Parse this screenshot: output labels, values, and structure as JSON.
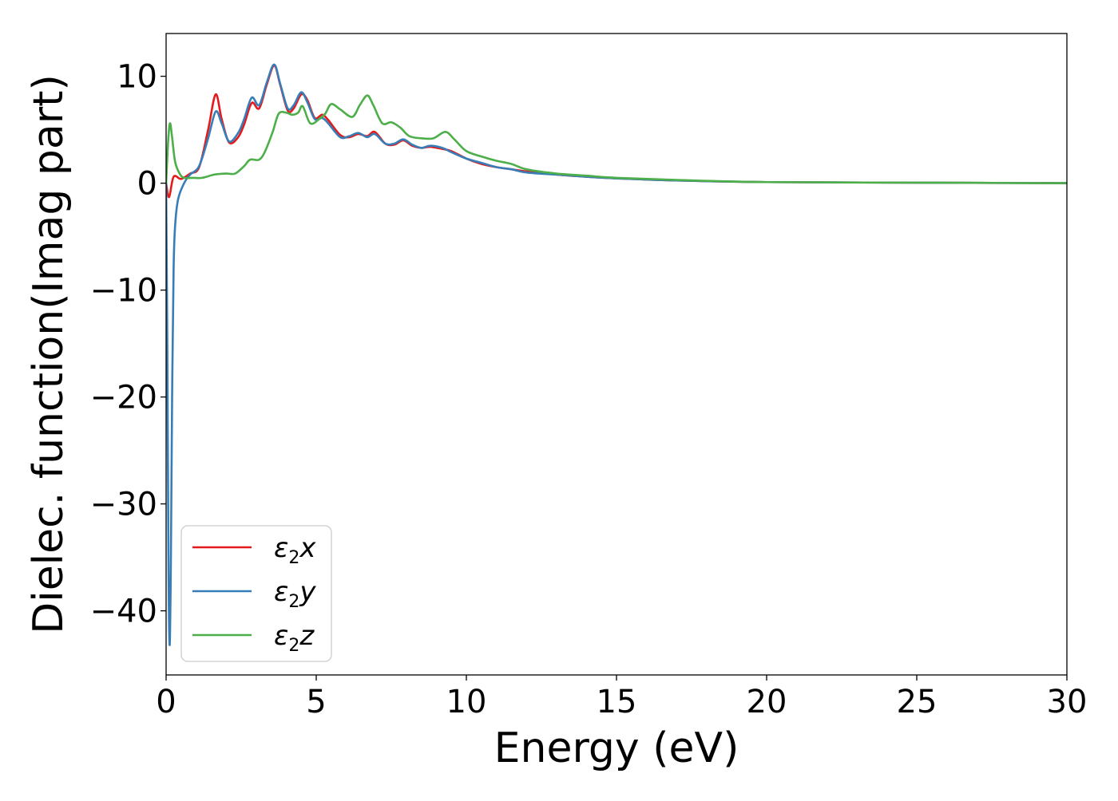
{
  "chart_data": {
    "type": "line",
    "title": "",
    "xlabel": "Energy (eV)",
    "ylabel": "Dielec. function(Imag part)",
    "xlim": [
      0,
      30
    ],
    "ylim": [
      -46,
      14
    ],
    "xticks": [
      0,
      5,
      10,
      15,
      20,
      25,
      30
    ],
    "xtick_labels": [
      "0",
      "5",
      "10",
      "15",
      "20",
      "25",
      "30"
    ],
    "yticks": [
      10,
      0,
      -10,
      -20,
      -30,
      -40
    ],
    "ytick_labels": [
      "10",
      "0",
      "−10",
      "−20",
      "−30",
      "−40"
    ],
    "grid": false,
    "legend_position": "lower-left",
    "series": [
      {
        "name": "ε₂x",
        "legend_main": "ε",
        "legend_sub": "2",
        "legend_tail": "x",
        "color": "#e41a1c",
        "points": [
          [
            0,
            0
          ],
          [
            0.1,
            -1.3
          ],
          [
            0.25,
            0.6
          ],
          [
            0.5,
            0.4
          ],
          [
            0.8,
            0.9
          ],
          [
            1.1,
            1.5
          ],
          [
            1.4,
            5.0
          ],
          [
            1.65,
            8.3
          ],
          [
            1.85,
            6.0
          ],
          [
            2.1,
            3.8
          ],
          [
            2.4,
            4.3
          ],
          [
            2.6,
            5.5
          ],
          [
            2.85,
            7.5
          ],
          [
            3.1,
            7.0
          ],
          [
            3.35,
            9.2
          ],
          [
            3.6,
            11.0
          ],
          [
            3.8,
            9.2
          ],
          [
            4.05,
            6.8
          ],
          [
            4.25,
            7.0
          ],
          [
            4.5,
            8.3
          ],
          [
            4.7,
            7.8
          ],
          [
            4.95,
            6.1
          ],
          [
            5.2,
            6.4
          ],
          [
            5.4,
            5.9
          ],
          [
            5.8,
            4.5
          ],
          [
            6.1,
            4.3
          ],
          [
            6.4,
            4.6
          ],
          [
            6.7,
            4.4
          ],
          [
            6.95,
            4.8
          ],
          [
            7.3,
            3.7
          ],
          [
            7.6,
            3.6
          ],
          [
            7.9,
            4.0
          ],
          [
            8.2,
            3.5
          ],
          [
            8.5,
            3.3
          ],
          [
            8.8,
            3.4
          ],
          [
            9.2,
            3.2
          ],
          [
            9.5,
            3.0
          ],
          [
            10.0,
            2.3
          ],
          [
            10.5,
            1.8
          ],
          [
            11.0,
            1.5
          ],
          [
            11.5,
            1.3
          ],
          [
            12.0,
            1.1
          ],
          [
            13.0,
            0.8
          ],
          [
            14.0,
            0.6
          ],
          [
            15.0,
            0.45
          ],
          [
            17.0,
            0.25
          ],
          [
            20.0,
            0.1
          ],
          [
            25.0,
            0.05
          ],
          [
            30.0,
            0.0
          ]
        ]
      },
      {
        "name": "ε₂y",
        "legend_main": "ε",
        "legend_sub": "2",
        "legend_tail": "y",
        "color": "#377eb8",
        "points": [
          [
            0,
            0
          ],
          [
            0.04,
            -15.0
          ],
          [
            0.08,
            -36.0
          ],
          [
            0.12,
            -43.2
          ],
          [
            0.16,
            -35.0
          ],
          [
            0.2,
            -20.0
          ],
          [
            0.25,
            -8.0
          ],
          [
            0.3,
            -4.0
          ],
          [
            0.4,
            -1.5
          ],
          [
            0.6,
            0.0
          ],
          [
            0.8,
            0.8
          ],
          [
            1.1,
            1.6
          ],
          [
            1.4,
            4.2
          ],
          [
            1.65,
            6.7
          ],
          [
            1.85,
            5.6
          ],
          [
            2.1,
            3.9
          ],
          [
            2.4,
            4.7
          ],
          [
            2.6,
            6.0
          ],
          [
            2.85,
            8.0
          ],
          [
            3.1,
            7.3
          ],
          [
            3.35,
            9.4
          ],
          [
            3.6,
            11.1
          ],
          [
            3.8,
            9.3
          ],
          [
            4.05,
            7.0
          ],
          [
            4.25,
            7.3
          ],
          [
            4.5,
            8.5
          ],
          [
            4.7,
            7.6
          ],
          [
            4.95,
            6.0
          ],
          [
            5.2,
            6.1
          ],
          [
            5.4,
            5.6
          ],
          [
            5.8,
            4.3
          ],
          [
            6.1,
            4.4
          ],
          [
            6.4,
            4.7
          ],
          [
            6.7,
            4.3
          ],
          [
            6.95,
            4.6
          ],
          [
            7.3,
            3.7
          ],
          [
            7.6,
            3.7
          ],
          [
            7.9,
            4.1
          ],
          [
            8.2,
            3.6
          ],
          [
            8.5,
            3.3
          ],
          [
            8.8,
            3.5
          ],
          [
            9.2,
            3.3
          ],
          [
            9.5,
            2.9
          ],
          [
            10.0,
            2.3
          ],
          [
            10.5,
            1.9
          ],
          [
            11.0,
            1.5
          ],
          [
            11.5,
            1.3
          ],
          [
            12.0,
            1.0
          ],
          [
            13.0,
            0.8
          ],
          [
            14.0,
            0.6
          ],
          [
            15.0,
            0.45
          ],
          [
            17.0,
            0.25
          ],
          [
            20.0,
            0.1
          ],
          [
            25.0,
            0.05
          ],
          [
            30.0,
            0.0
          ]
        ]
      },
      {
        "name": "ε₂z",
        "legend_main": "ε",
        "legend_sub": "2",
        "legend_tail": "z",
        "color": "#4daf4a",
        "points": [
          [
            0,
            0
          ],
          [
            0.07,
            4.0
          ],
          [
            0.13,
            5.6
          ],
          [
            0.2,
            4.3
          ],
          [
            0.3,
            2.0
          ],
          [
            0.45,
            0.9
          ],
          [
            0.6,
            0.5
          ],
          [
            0.9,
            0.5
          ],
          [
            1.2,
            0.5
          ],
          [
            1.6,
            0.8
          ],
          [
            2.0,
            0.9
          ],
          [
            2.3,
            0.9
          ],
          [
            2.6,
            1.6
          ],
          [
            2.8,
            2.2
          ],
          [
            3.1,
            2.2
          ],
          [
            3.3,
            3.0
          ],
          [
            3.55,
            4.8
          ],
          [
            3.75,
            6.5
          ],
          [
            4.0,
            6.6
          ],
          [
            4.2,
            6.4
          ],
          [
            4.4,
            6.6
          ],
          [
            4.55,
            7.2
          ],
          [
            4.8,
            5.6
          ],
          [
            5.1,
            6.0
          ],
          [
            5.3,
            6.5
          ],
          [
            5.5,
            7.4
          ],
          [
            5.8,
            6.9
          ],
          [
            6.2,
            6.2
          ],
          [
            6.45,
            7.3
          ],
          [
            6.7,
            8.2
          ],
          [
            6.9,
            7.3
          ],
          [
            7.2,
            5.6
          ],
          [
            7.5,
            5.7
          ],
          [
            7.8,
            5.2
          ],
          [
            8.1,
            4.4
          ],
          [
            8.5,
            4.2
          ],
          [
            8.9,
            4.2
          ],
          [
            9.3,
            4.8
          ],
          [
            9.6,
            4.1
          ],
          [
            10.0,
            3.0
          ],
          [
            10.5,
            2.5
          ],
          [
            11.0,
            2.1
          ],
          [
            11.5,
            1.8
          ],
          [
            12.0,
            1.3
          ],
          [
            13.0,
            0.9
          ],
          [
            14.0,
            0.7
          ],
          [
            15.0,
            0.5
          ],
          [
            17.0,
            0.3
          ],
          [
            20.0,
            0.1
          ],
          [
            25.0,
            0.05
          ],
          [
            30.0,
            0.0
          ]
        ]
      }
    ]
  }
}
